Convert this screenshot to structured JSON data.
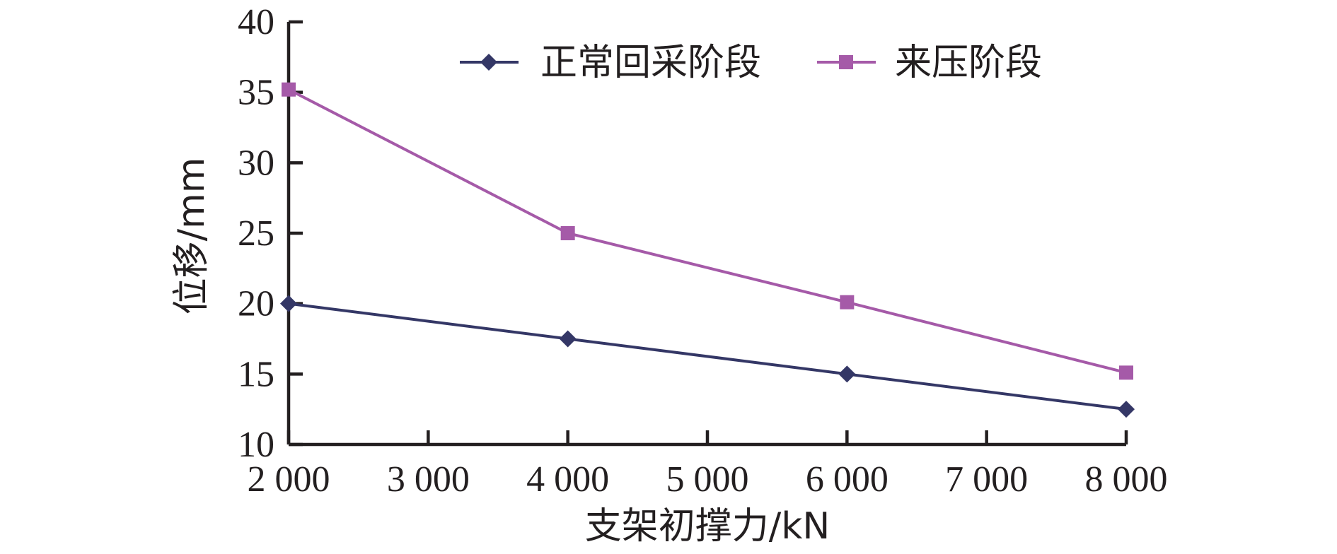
{
  "chart_data": {
    "type": "line",
    "xlabel": "支架初撑力/kN",
    "ylabel": "位移/mm",
    "xlim": [
      2000,
      8000
    ],
    "ylim": [
      10,
      40
    ],
    "x_ticks": [
      2000,
      3000,
      4000,
      5000,
      6000,
      7000,
      8000
    ],
    "x_tick_labels": [
      "2 000",
      "3 000",
      "4 000",
      "5 000",
      "6 000",
      "7 000",
      "8 000"
    ],
    "y_ticks": [
      10,
      15,
      20,
      25,
      30,
      35,
      40
    ],
    "y_tick_labels": [
      "10",
      "15",
      "20",
      "25",
      "30",
      "35",
      "40"
    ],
    "grid": false,
    "legend_position": "top",
    "x": [
      2000,
      4000,
      6000,
      8000
    ],
    "series": [
      {
        "name": "正常回采阶段",
        "values": [
          20,
          17.5,
          15,
          12.5
        ],
        "color": "#343766",
        "marker": "diamond"
      },
      {
        "name": "来压阶段",
        "values": [
          35.2,
          25,
          20.1,
          15.1
        ],
        "color": "#a55aa8",
        "marker": "square"
      }
    ]
  }
}
